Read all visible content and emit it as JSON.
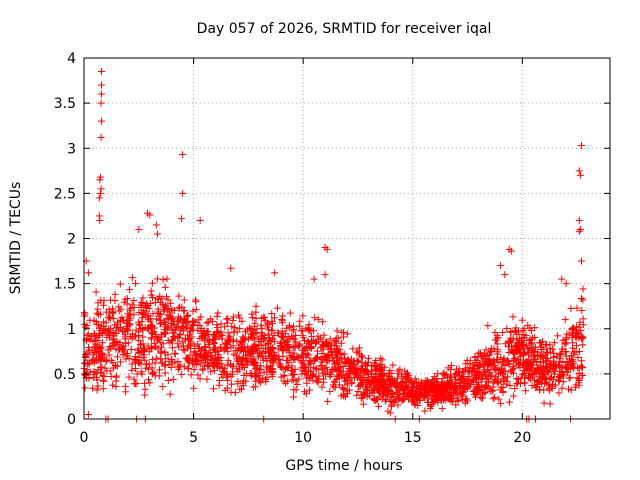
{
  "chart_data": {
    "type": "scatter",
    "title": "Day 057 of 2026, SRMTID for receiver iqal",
    "xlabel": "GPS time / hours",
    "ylabel": "SRMTID / TECUs",
    "xlim": [
      0,
      24
    ],
    "ylim": [
      0,
      4
    ],
    "xticks": [
      0,
      5,
      10,
      15,
      20
    ],
    "xtick_labels": [
      "0",
      "5",
      "10",
      "15",
      "20"
    ],
    "yticks": [
      0,
      0.5,
      1,
      1.5,
      2,
      2.5,
      3,
      3.5,
      4
    ],
    "ytick_labels": [
      "0",
      "0.5",
      "1",
      "1.5",
      "2",
      "2.5",
      "3",
      "3.5",
      "4"
    ],
    "grid": true,
    "marker": "+",
    "series_color": "#ff0000",
    "trend_hours": [
      0,
      1,
      2,
      3,
      4,
      5,
      6,
      7,
      8,
      9,
      10,
      11,
      12,
      13,
      14,
      15,
      16,
      17,
      18,
      19,
      20,
      21,
      22,
      22.8
    ],
    "trend_values": [
      0.75,
      0.85,
      0.95,
      1.0,
      0.95,
      0.85,
      0.75,
      0.7,
      0.75,
      0.8,
      0.7,
      0.65,
      0.55,
      0.45,
      0.35,
      0.3,
      0.3,
      0.35,
      0.5,
      0.65,
      0.7,
      0.55,
      0.65,
      0.85
    ],
    "spread": [
      0.55,
      0.6,
      0.6,
      0.65,
      0.6,
      0.5,
      0.45,
      0.45,
      0.45,
      0.45,
      0.45,
      0.4,
      0.35,
      0.3,
      0.25,
      0.2,
      0.2,
      0.25,
      0.35,
      0.45,
      0.4,
      0.35,
      0.45,
      0.6
    ],
    "outliers": [
      {
        "x": 0.8,
        "y": 3.85
      },
      {
        "x": 0.8,
        "y": 3.7
      },
      {
        "x": 0.8,
        "y": 3.6
      },
      {
        "x": 0.78,
        "y": 3.5
      },
      {
        "x": 0.8,
        "y": 3.3
      },
      {
        "x": 0.78,
        "y": 3.12
      },
      {
        "x": 0.75,
        "y": 2.68
      },
      {
        "x": 0.72,
        "y": 2.65
      },
      {
        "x": 0.78,
        "y": 2.55
      },
      {
        "x": 0.75,
        "y": 2.5
      },
      {
        "x": 0.7,
        "y": 2.45
      },
      {
        "x": 0.7,
        "y": 2.25
      },
      {
        "x": 0.72,
        "y": 2.2
      },
      {
        "x": 4.5,
        "y": 2.93
      },
      {
        "x": 4.5,
        "y": 2.5
      },
      {
        "x": 4.45,
        "y": 2.22
      },
      {
        "x": 5.3,
        "y": 2.2
      },
      {
        "x": 2.9,
        "y": 2.28
      },
      {
        "x": 3.0,
        "y": 2.26
      },
      {
        "x": 3.3,
        "y": 2.15
      },
      {
        "x": 3.35,
        "y": 2.05
      },
      {
        "x": 2.5,
        "y": 2.1
      },
      {
        "x": 11.0,
        "y": 1.9
      },
      {
        "x": 11.1,
        "y": 1.88
      },
      {
        "x": 19.4,
        "y": 1.88
      },
      {
        "x": 19.5,
        "y": 1.86
      },
      {
        "x": 22.7,
        "y": 3.03
      },
      {
        "x": 22.6,
        "y": 2.75
      },
      {
        "x": 22.65,
        "y": 2.7
      },
      {
        "x": 22.6,
        "y": 2.2
      },
      {
        "x": 22.65,
        "y": 2.1
      },
      {
        "x": 22.6,
        "y": 2.08
      },
      {
        "x": 22.7,
        "y": 1.75
      },
      {
        "x": 0.1,
        "y": 1.75
      },
      {
        "x": 0.2,
        "y": 1.62
      },
      {
        "x": 6.7,
        "y": 1.67
      },
      {
        "x": 8.7,
        "y": 1.62
      },
      {
        "x": 10.5,
        "y": 1.55
      },
      {
        "x": 11.0,
        "y": 1.6
      },
      {
        "x": 19.0,
        "y": 1.7
      },
      {
        "x": 19.2,
        "y": 1.6
      },
      {
        "x": 21.8,
        "y": 1.55
      },
      {
        "x": 22.0,
        "y": 1.5
      },
      {
        "x": 1.0,
        "y": 0.0
      },
      {
        "x": 1.1,
        "y": 0.0
      },
      {
        "x": 2.4,
        "y": 0.0
      },
      {
        "x": 2.8,
        "y": 0.0
      },
      {
        "x": 8.2,
        "y": 0.0
      },
      {
        "x": 14.2,
        "y": 0.0
      },
      {
        "x": 15.3,
        "y": 0.0
      },
      {
        "x": 20.2,
        "y": 0.0
      },
      {
        "x": 20.3,
        "y": 0.0
      },
      {
        "x": 20.6,
        "y": 0.0
      },
      {
        "x": 22.2,
        "y": 0.0
      },
      {
        "x": 0.2,
        "y": 0.05
      }
    ]
  }
}
